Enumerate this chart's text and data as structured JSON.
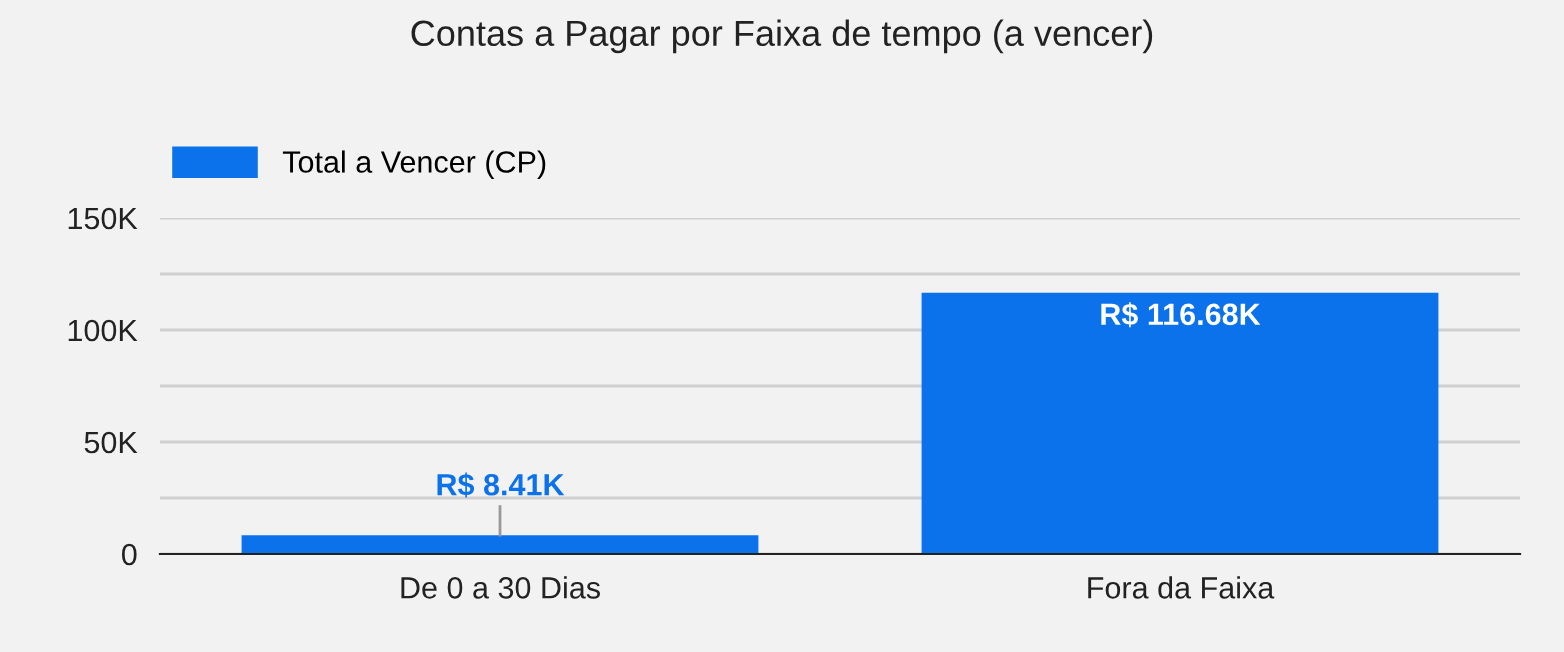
{
  "chart_data": {
    "type": "bar",
    "title": "Contas a Pagar por Faixa de tempo (a vencer)",
    "categories": [
      "De 0 a 30 Dias",
      "Fora da Faixa"
    ],
    "series": [
      {
        "name": "Total a Vencer (CP)",
        "color": "#0b72ec",
        "values": [
          8410,
          116680
        ],
        "value_labels": [
          "R$ 8.41K",
          "R$ 116.68K"
        ]
      }
    ],
    "ylim": [
      0,
      150000
    ],
    "yticks": [
      {
        "value": 0,
        "label": "0"
      },
      {
        "value": 25000,
        "label": null
      },
      {
        "value": 50000,
        "label": "50K"
      },
      {
        "value": 75000,
        "label": null
      },
      {
        "value": 100000,
        "label": "100K"
      },
      {
        "value": 125000,
        "label": null
      },
      {
        "value": 150000,
        "label": "150K"
      }
    ],
    "grid": "y",
    "legend": "top left"
  }
}
